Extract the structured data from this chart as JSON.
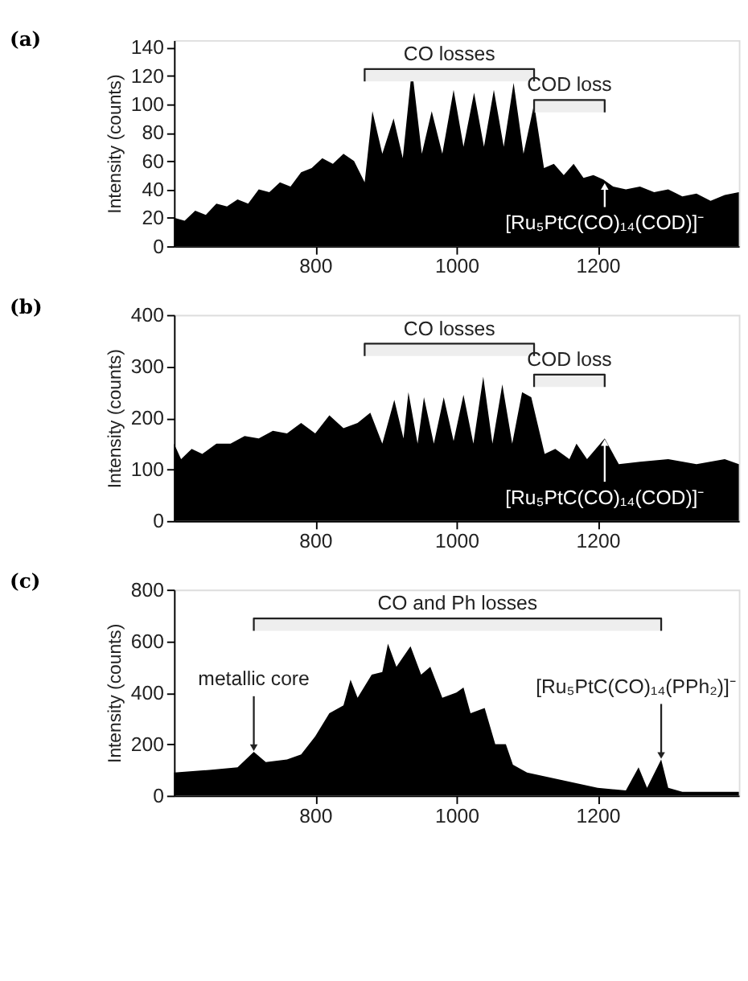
{
  "chart_data": [
    {
      "type": "area",
      "title": "(a)",
      "ylabel": "Intensity (counts)",
      "xlim": [
        600,
        1400
      ],
      "ylim": [
        0,
        145
      ],
      "xticks": [
        800,
        1000,
        1200
      ],
      "yticks": [
        0,
        20,
        40,
        60,
        80,
        100,
        120,
        140
      ],
      "grid": false,
      "x": [
        600,
        615,
        630,
        645,
        660,
        675,
        690,
        705,
        720,
        735,
        750,
        765,
        780,
        795,
        810,
        825,
        840,
        855,
        870,
        881,
        895,
        911,
        924,
        937,
        951,
        965,
        980,
        996,
        1010,
        1025,
        1039,
        1053,
        1067,
        1081,
        1095,
        1110,
        1124,
        1138,
        1152,
        1166,
        1180,
        1194,
        1208,
        1222,
        1240,
        1260,
        1280,
        1300,
        1320,
        1340,
        1360,
        1380,
        1400
      ],
      "series": [
        {
          "color": "#000000",
          "values": [
            20,
            18,
            25,
            22,
            30,
            28,
            33,
            30,
            40,
            38,
            45,
            42,
            52,
            55,
            62,
            58,
            65,
            60,
            45,
            95,
            65,
            90,
            62,
            125,
            65,
            95,
            65,
            110,
            70,
            108,
            70,
            110,
            70,
            115,
            65,
            100,
            55,
            58,
            50,
            58,
            48,
            50,
            47,
            42,
            40,
            42,
            38,
            40,
            35,
            37,
            32,
            36,
            38
          ]
        }
      ],
      "bands": [
        {
          "axis": "x",
          "from": 870,
          "to": 1110,
          "label": "CO losses"
        },
        {
          "axis": "x",
          "from": 1110,
          "to": 1210,
          "label": "COD loss"
        }
      ],
      "annotations": [
        {
          "text": "[Ru₅PtC(CO)₁₄(COD)]⁻",
          "x": 1210,
          "y": 45
        }
      ]
    },
    {
      "type": "area",
      "title": "(b)",
      "ylabel": "Intensity (counts)",
      "xlim": [
        600,
        1400
      ],
      "ylim": [
        0,
        400
      ],
      "xticks": [
        800,
        1000,
        1200
      ],
      "yticks": [
        0,
        100,
        200,
        300,
        400
      ],
      "grid": false,
      "x": [
        600,
        610,
        625,
        640,
        660,
        680,
        700,
        720,
        740,
        760,
        780,
        800,
        820,
        840,
        860,
        878,
        895,
        912,
        925,
        932,
        945,
        954,
        968,
        982,
        996,
        1010,
        1024,
        1038,
        1051,
        1065,
        1079,
        1093,
        1106,
        1125,
        1140,
        1160,
        1170,
        1185,
        1210,
        1230,
        1260,
        1300,
        1340,
        1380,
        1400
      ],
      "series": [
        {
          "color": "#000000",
          "values": [
            150,
            120,
            140,
            130,
            150,
            150,
            165,
            160,
            175,
            170,
            190,
            170,
            205,
            180,
            190,
            210,
            150,
            235,
            160,
            250,
            150,
            240,
            150,
            240,
            155,
            245,
            150,
            280,
            150,
            265,
            150,
            250,
            240,
            130,
            140,
            120,
            150,
            120,
            160,
            110,
            115,
            120,
            110,
            120,
            110
          ]
        }
      ],
      "bands": [
        {
          "axis": "x",
          "from": 870,
          "to": 1110,
          "label": "CO losses"
        },
        {
          "axis": "x",
          "from": 1110,
          "to": 1210,
          "label": "COD loss"
        }
      ],
      "annotations": [
        {
          "text": "[Ru₅PtC(CO)₁₄(COD)]⁻",
          "x": 1210,
          "y": 160
        }
      ]
    },
    {
      "type": "area",
      "title": "(c)",
      "ylabel": "Intensity (counts)",
      "xlim": [
        600,
        1400
      ],
      "ylim": [
        0,
        800
      ],
      "xticks": [
        800,
        1000,
        1200
      ],
      "yticks": [
        0,
        200,
        400,
        600,
        800
      ],
      "grid": false,
      "x": [
        600,
        650,
        690,
        713,
        730,
        760,
        780,
        800,
        820,
        840,
        850,
        860,
        880,
        895,
        903,
        915,
        935,
        950,
        963,
        980,
        1000,
        1010,
        1020,
        1040,
        1055,
        1070,
        1080,
        1100,
        1150,
        1200,
        1240,
        1258,
        1270,
        1290,
        1300,
        1320,
        1400
      ],
      "series": [
        {
          "color": "#000000",
          "values": [
            90,
            100,
            110,
            170,
            130,
            140,
            160,
            230,
            320,
            350,
            450,
            380,
            470,
            480,
            590,
            500,
            580,
            470,
            500,
            380,
            400,
            420,
            320,
            340,
            200,
            200,
            120,
            90,
            60,
            30,
            20,
            110,
            30,
            140,
            30,
            15,
            15
          ]
        }
      ],
      "bands": [
        {
          "axis": "x",
          "from": 713,
          "to": 1290,
          "label": "CO and Ph losses"
        }
      ],
      "annotations": [
        {
          "text": "metallic core",
          "x": 713,
          "y": 170
        },
        {
          "text": "[Ru₅PtC(CO)₁₄(PPh₂)]⁻",
          "x": 1290,
          "y": 140
        }
      ]
    }
  ]
}
